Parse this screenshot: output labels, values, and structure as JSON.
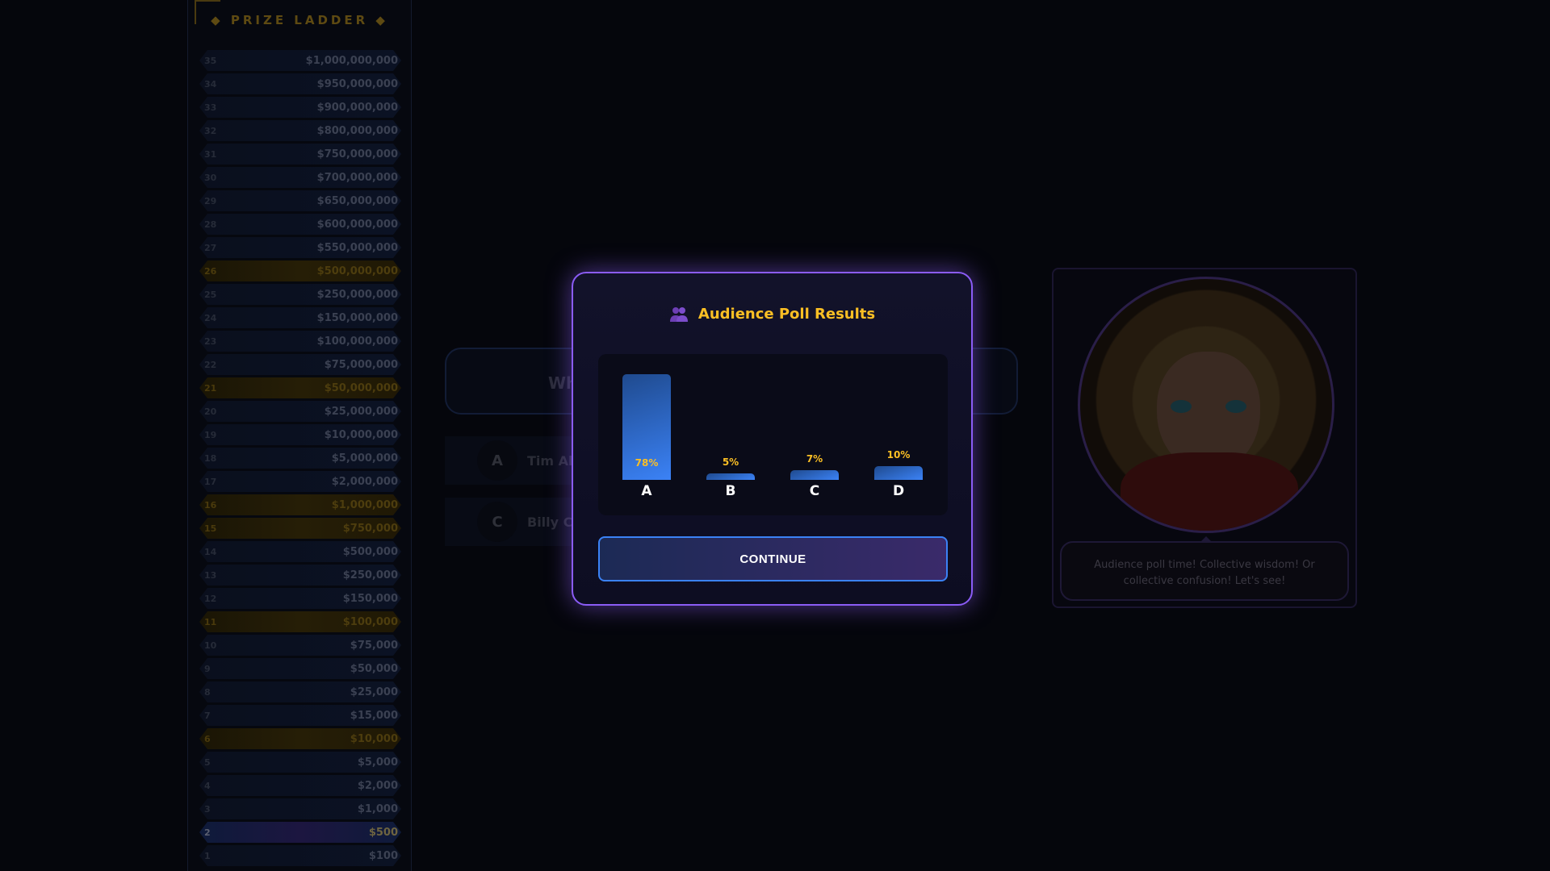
{
  "ladder": {
    "title": "◆ PRIZE LADDER ◆",
    "levels": [
      {
        "n": "35",
        "v": "$1,000,000,000"
      },
      {
        "n": "34",
        "v": "$950,000,000"
      },
      {
        "n": "33",
        "v": "$900,000,000"
      },
      {
        "n": "32",
        "v": "$800,000,000"
      },
      {
        "n": "31",
        "v": "$750,000,000"
      },
      {
        "n": "30",
        "v": "$700,000,000"
      },
      {
        "n": "29",
        "v": "$650,000,000"
      },
      {
        "n": "28",
        "v": "$600,000,000"
      },
      {
        "n": "27",
        "v": "$550,000,000"
      },
      {
        "n": "26",
        "v": "$500,000,000",
        "safe": true
      },
      {
        "n": "25",
        "v": "$250,000,000"
      },
      {
        "n": "24",
        "v": "$150,000,000"
      },
      {
        "n": "23",
        "v": "$100,000,000"
      },
      {
        "n": "22",
        "v": "$75,000,000"
      },
      {
        "n": "21",
        "v": "$50,000,000",
        "safe": true
      },
      {
        "n": "20",
        "v": "$25,000,000"
      },
      {
        "n": "19",
        "v": "$10,000,000"
      },
      {
        "n": "18",
        "v": "$5,000,000"
      },
      {
        "n": "17",
        "v": "$2,000,000"
      },
      {
        "n": "16",
        "v": "$1,000,000",
        "safe": true
      },
      {
        "n": "15",
        "v": "$750,000",
        "safe": true
      },
      {
        "n": "14",
        "v": "$500,000"
      },
      {
        "n": "13",
        "v": "$250,000"
      },
      {
        "n": "12",
        "v": "$150,000"
      },
      {
        "n": "11",
        "v": "$100,000",
        "safe": true
      },
      {
        "n": "10",
        "v": "$75,000"
      },
      {
        "n": "9",
        "v": "$50,000"
      },
      {
        "n": "8",
        "v": "$25,000"
      },
      {
        "n": "7",
        "v": "$15,000"
      },
      {
        "n": "6",
        "v": "$10,000",
        "safe": true
      },
      {
        "n": "5",
        "v": "$5,000"
      },
      {
        "n": "4",
        "v": "$2,000"
      },
      {
        "n": "3",
        "v": "$1,000"
      },
      {
        "n": "2",
        "v": "$500",
        "current": true
      },
      {
        "n": "1",
        "v": "$100"
      }
    ]
  },
  "question": {
    "text": "Wh"
  },
  "answers": [
    {
      "letter": "A",
      "text": "Tim All"
    },
    {
      "letter": "C",
      "text": "Billy Cr"
    }
  ],
  "host": {
    "speech": "Audience poll time! Collective wisdom! Or collective confusion! Let's see!"
  },
  "modal": {
    "icon": "people-icon",
    "title": "Audience Poll Results",
    "continue_label": "CONTINUE"
  },
  "colors": {
    "accent": "#8b5cf6",
    "bar": "#3b82f6",
    "gold": "#fbbf24"
  },
  "chart_data": {
    "type": "bar",
    "categories": [
      "A",
      "B",
      "C",
      "D"
    ],
    "values": [
      78,
      5,
      7,
      10
    ],
    "labels": [
      "78%",
      "5%",
      "7%",
      "10%"
    ],
    "ylim": [
      0,
      100
    ]
  }
}
